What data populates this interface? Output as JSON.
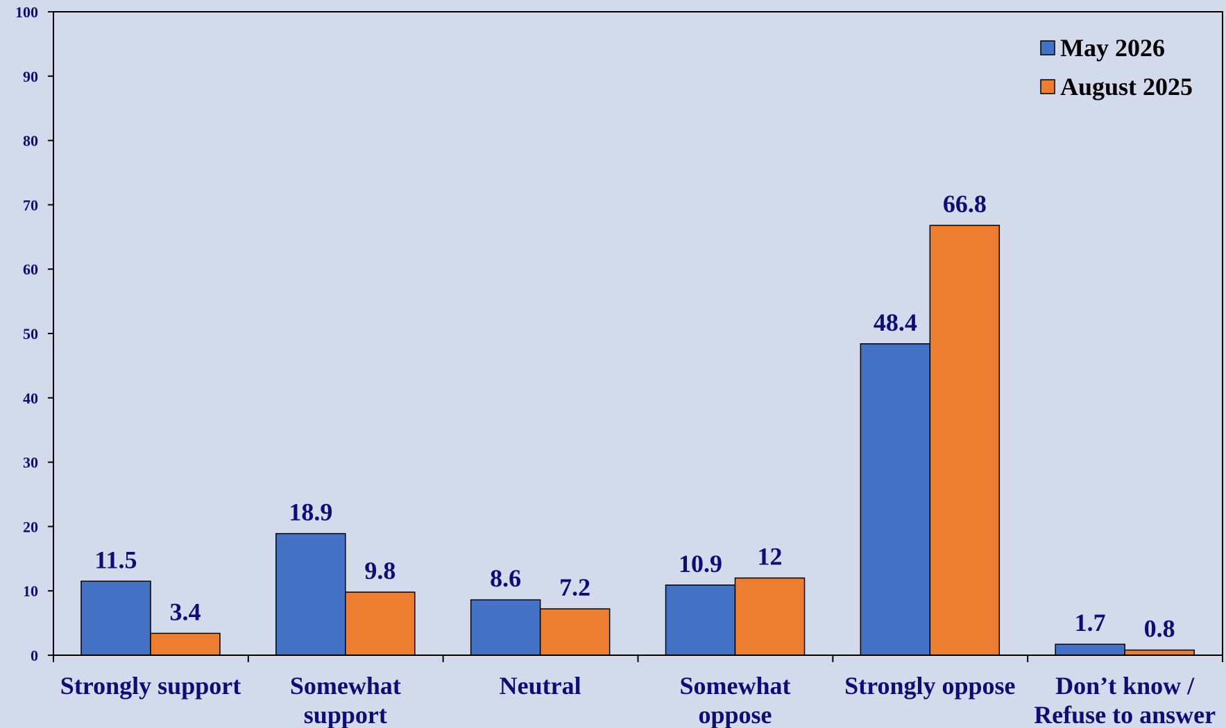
{
  "chart_data": {
    "type": "bar",
    "title": "",
    "xlabel": "",
    "ylabel": "",
    "categories": [
      [
        "Strongly support"
      ],
      [
        "Somewhat",
        "support"
      ],
      [
        "Neutral"
      ],
      [
        "Somewhat",
        "oppose"
      ],
      [
        "Strongly oppose"
      ],
      [
        "Don’t know /",
        "Refuse to answer"
      ]
    ],
    "series": [
      {
        "name": "May 2026",
        "color": "#4472c4",
        "values": [
          11.5,
          18.9,
          8.6,
          10.9,
          48.4,
          1.7
        ]
      },
      {
        "name": "August 2025",
        "color": "#ed7d31",
        "values": [
          3.4,
          9.8,
          7.2,
          12,
          66.8,
          0.8
        ]
      }
    ],
    "ylim": [
      0,
      100
    ],
    "yticks": [
      0,
      10,
      20,
      30,
      40,
      50,
      60,
      70,
      80,
      90,
      100
    ],
    "grid": false,
    "legend": "top-right",
    "colors": {
      "background": "#d3daec",
      "text": "#0d0d73",
      "axis": "#000000"
    }
  }
}
